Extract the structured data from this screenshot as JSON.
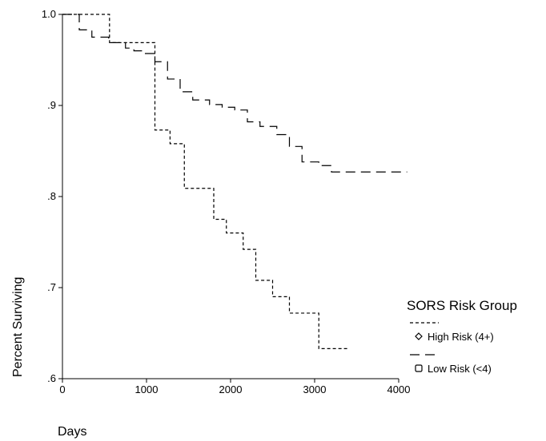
{
  "chart_data": {
    "type": "line",
    "subtype": "step (Kaplan-Meier survival)",
    "title": "",
    "xlabel": "Days",
    "ylabel": "Percent Surviving",
    "xlim": [
      0,
      4000
    ],
    "ylim": [
      0.6,
      1.0
    ],
    "x_ticks": [
      0,
      1000,
      2000,
      3000,
      4000
    ],
    "x_tick_labels": [
      "0",
      "1000",
      "2000",
      "3000",
      "4000"
    ],
    "y_ticks": [
      0.6,
      0.7,
      0.8,
      0.9,
      1.0
    ],
    "y_tick_labels": [
      ".6",
      ".7",
      ".8",
      ".9",
      "1.0"
    ],
    "grid": false,
    "legend": {
      "title": "SORS Risk Group",
      "placement": "right",
      "entries": [
        "High Risk (4+)",
        "Low Risk (<4)"
      ]
    },
    "series": [
      {
        "name": "High Risk (4+)",
        "line_style": "short-dash",
        "marker": "diamond",
        "x": [
          0,
          560,
          1100,
          1280,
          1450,
          1800,
          1950,
          2150,
          2300,
          2500,
          2700,
          3050,
          3400
        ],
        "y": [
          1.0,
          0.969,
          0.873,
          0.858,
          0.809,
          0.775,
          0.76,
          0.742,
          0.708,
          0.69,
          0.672,
          0.633,
          0.633
        ]
      },
      {
        "name": "Low Risk (<4)",
        "line_style": "long-dash",
        "marker": "square",
        "x": [
          0,
          200,
          350,
          550,
          750,
          850,
          950,
          1100,
          1250,
          1400,
          1550,
          1750,
          1900,
          2050,
          2200,
          2350,
          2550,
          2700,
          2850,
          3050,
          3200,
          4100
        ],
        "y": [
          1.0,
          0.983,
          0.975,
          0.969,
          0.963,
          0.96,
          0.957,
          0.948,
          0.929,
          0.915,
          0.906,
          0.901,
          0.898,
          0.895,
          0.882,
          0.877,
          0.868,
          0.855,
          0.838,
          0.834,
          0.827,
          0.827
        ]
      }
    ]
  }
}
